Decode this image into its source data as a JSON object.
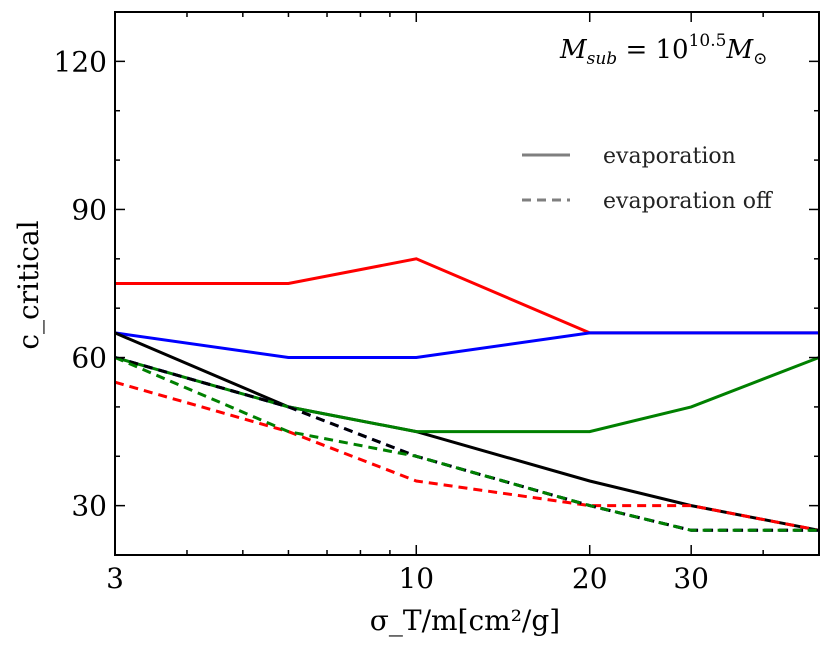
{
  "chart_data": {
    "type": "line",
    "title": "",
    "xlabel": "σ_T/m[cm²/g]",
    "ylabel": "c_critical",
    "xscale": "log",
    "xlim": [
      3,
      50
    ],
    "ylim": [
      20,
      130
    ],
    "xticks": [
      3,
      10,
      20,
      30
    ],
    "xtick_labels": [
      "3",
      "10",
      "20",
      "30"
    ],
    "yticks": [
      30,
      60,
      90,
      120
    ],
    "ytick_labels": [
      "30",
      "60",
      "90",
      "120"
    ],
    "grid": false,
    "annotation": {
      "base": "M",
      "base_sub": "sub",
      "equals": " = 10",
      "exponent": "10.5",
      "unit": "M",
      "unit_sub": "⊙"
    },
    "legend": {
      "position": "upper-right",
      "entries": [
        {
          "label": "evaporation",
          "style": "solid",
          "color": "#7f7f7f"
        },
        {
          "label": "evaporation off",
          "style": "dashed",
          "color": "#7f7f7f"
        }
      ]
    },
    "series": [
      {
        "name": "red-evaporation",
        "color": "#ff0000",
        "style": "solid",
        "x": [
          3,
          6,
          10,
          20,
          30,
          50
        ],
        "y": [
          75,
          75,
          80,
          65,
          65,
          65
        ]
      },
      {
        "name": "blue-evaporation",
        "color": "#0000ff",
        "style": "solid",
        "x": [
          3,
          6,
          10,
          20,
          30,
          50
        ],
        "y": [
          65,
          60,
          60,
          65,
          65,
          65
        ]
      },
      {
        "name": "black-evaporation",
        "color": "#000000",
        "style": "solid",
        "x": [
          3,
          6,
          10,
          20,
          30,
          50
        ],
        "y": [
          65,
          50,
          45,
          35,
          30,
          25
        ]
      },
      {
        "name": "green-evaporation",
        "color": "#008000",
        "style": "solid",
        "x": [
          3,
          6,
          10,
          20,
          30,
          50
        ],
        "y": [
          60,
          50,
          45,
          45,
          50,
          60
        ]
      },
      {
        "name": "red-evaporation-off",
        "color": "#ff0000",
        "style": "dashed",
        "x": [
          3,
          6,
          10,
          20,
          30,
          50
        ],
        "y": [
          55,
          45,
          35,
          30,
          30,
          25
        ]
      },
      {
        "name": "blue-evaporation-off",
        "color": "#0000ff",
        "style": "dashed",
        "x": [
          3,
          6,
          10,
          20,
          30,
          50
        ],
        "y": [
          60,
          50,
          40,
          30,
          25,
          25
        ]
      },
      {
        "name": "black-evaporation-off",
        "color": "#000000",
        "style": "dashed",
        "x": [
          3,
          6,
          10,
          20,
          30,
          50
        ],
        "y": [
          60,
          50,
          40,
          30,
          25,
          25
        ]
      },
      {
        "name": "green-evaporation-off",
        "color": "#008000",
        "style": "dashed",
        "x": [
          3,
          6,
          10,
          20,
          30,
          50
        ],
        "y": [
          60,
          45,
          40,
          30,
          25,
          25
        ]
      }
    ]
  }
}
